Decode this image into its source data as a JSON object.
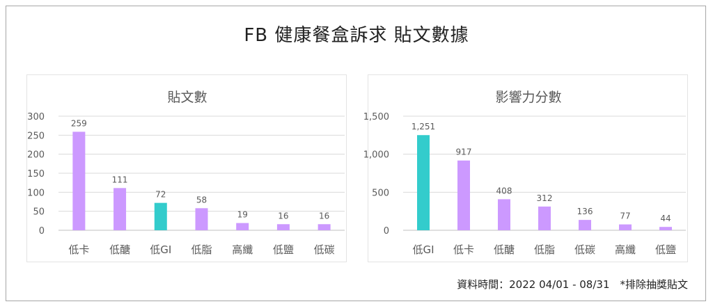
{
  "title": "FB 健康餐盒訴求 貼文數據",
  "footnote": "資料時間：2022 04/01 - 08/31　*排除抽獎貼文",
  "colors": {
    "bar": "#cc99ff",
    "highlight": "#33cccc",
    "grid": "#d9d9d9",
    "text": "#595959"
  },
  "chart_data": [
    {
      "type": "bar",
      "title": "貼文數",
      "categories": [
        "低卡",
        "低醣",
        "低GI",
        "低脂",
        "高纖",
        "低鹽",
        "低碳"
      ],
      "values": [
        259,
        111,
        72,
        58,
        19,
        16,
        16
      ],
      "value_labels": [
        "259",
        "111",
        "72",
        "58",
        "19",
        "16",
        "16"
      ],
      "highlight_index": 2,
      "ylim": [
        0,
        300
      ],
      "yticks": [
        0,
        50,
        100,
        150,
        200,
        250,
        300
      ],
      "ytick_labels": [
        "0",
        "50",
        "100",
        "150",
        "200",
        "250",
        "300"
      ],
      "grid": true
    },
    {
      "type": "bar",
      "title": "影響力分數",
      "categories": [
        "低GI",
        "低卡",
        "低醣",
        "低脂",
        "低碳",
        "高纖",
        "低鹽"
      ],
      "values": [
        1251,
        917,
        408,
        312,
        136,
        77,
        44
      ],
      "value_labels": [
        "1,251",
        "917",
        "408",
        "312",
        "136",
        "77",
        "44"
      ],
      "highlight_index": 0,
      "ylim": [
        0,
        1500
      ],
      "yticks": [
        0,
        500,
        1000,
        1500
      ],
      "ytick_labels": [
        "0",
        "500",
        "1,000",
        "1,500"
      ],
      "grid": true
    }
  ]
}
